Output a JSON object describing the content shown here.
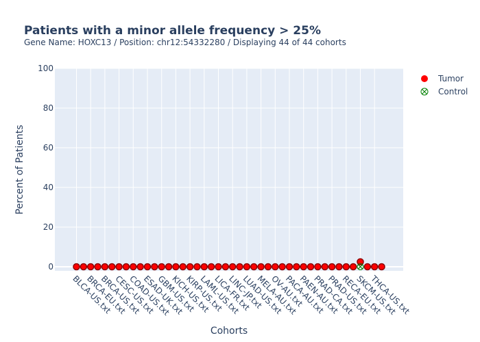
{
  "chart_data": {
    "type": "scatter",
    "title": "Patients with a minor allele frequency > 25%",
    "subtitle": "Gene Name: HOXC13 / Position: chr12:54332280 / Displaying 44 of 44 cohorts",
    "xlabel": "Cohorts",
    "ylabel": "Percent of Patients",
    "ylim": [
      0,
      100
    ],
    "yticks": [
      0,
      20,
      40,
      60,
      80,
      100
    ],
    "grid": true,
    "legend_position": "top-right",
    "colors": {
      "plot_bg": "#e5ecf6",
      "tumor": "#ff0000",
      "tumor_outline": "#8b0000",
      "control": "#008000"
    },
    "x_tick_labels": [
      "BLCA-US.txt",
      "BRCA-EU.txt",
      "BRCA-US.txt",
      "CESC-US.txt",
      "COAD-US.txt",
      "ESAD-UK.txt",
      "GBM-US.txt",
      "KICH-US.txt",
      "KIRP-US.txt",
      "LAML-US.txt",
      "LICA-FR.txt",
      "LINC-JP.txt",
      "LUAD-US.txt",
      "MELA-AU.txt",
      "OV-AU.txt",
      "PACA-AU.txt",
      "PAEN-AU.txt",
      "PRAD-CA.txt",
      "PRAD-US.txt",
      "RECA-EU.txt",
      "SKCM-US.txt",
      "THCA-US.txt"
    ],
    "n_points": 44,
    "series": [
      {
        "name": "Tumor",
        "values": [
          0,
          0,
          0,
          0,
          0,
          0,
          0,
          0,
          0,
          0,
          0,
          0,
          0,
          0,
          0,
          0,
          0,
          0,
          0,
          0,
          0,
          0,
          0,
          0,
          0,
          0,
          0,
          0,
          0,
          0,
          0,
          0,
          0,
          0,
          0,
          0,
          0,
          0,
          0,
          0,
          2.5,
          0,
          0,
          0
        ]
      },
      {
        "name": "Control",
        "values": [
          0,
          0,
          0,
          0,
          0,
          0,
          0,
          0,
          0,
          0,
          0,
          0,
          0,
          0,
          0,
          0,
          0,
          0,
          0,
          0,
          0,
          0,
          0,
          0,
          0,
          0,
          0,
          0,
          0,
          0,
          0,
          0,
          0,
          0,
          0,
          0,
          0,
          0,
          0,
          0,
          0,
          0,
          0,
          0
        ]
      }
    ]
  }
}
